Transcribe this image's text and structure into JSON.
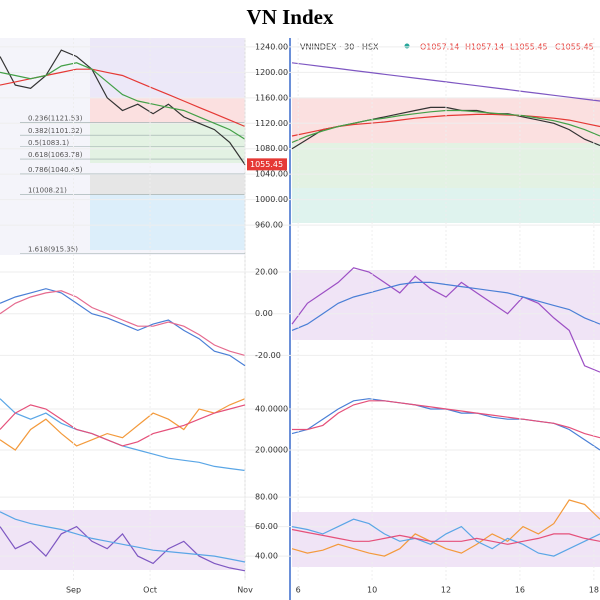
{
  "title": "VN Index",
  "right_header": {
    "symbol": "VNINDEX · 30 · HSX",
    "ohlc": [
      "O1057.14",
      "H1057.14",
      "L1055.45",
      "C1055.45"
    ]
  },
  "chart_data": [
    {
      "type": "line",
      "xlim": [
        0,
        80
      ],
      "x": [
        0,
        5,
        10,
        15,
        20,
        25,
        30,
        35,
        40,
        45,
        50,
        55,
        60,
        65,
        70,
        75,
        80
      ],
      "ylim": [
        913,
        1254
      ],
      "yticks": [
        {
          "value": 1240,
          "label": "1240.00"
        },
        {
          "value": 1200,
          "label": "1200.00"
        },
        {
          "value": 1160,
          "label": "1160.00"
        },
        {
          "value": 1120,
          "label": "1120.00"
        },
        {
          "value": 1080,
          "label": "1080.00"
        },
        {
          "value": 1040,
          "label": "1040.00"
        },
        {
          "value": 1000,
          "label": "1000.00"
        },
        {
          "value": 960,
          "label": "960.00"
        }
      ],
      "series": [
        {
          "color": "#333333",
          "values": [
            1225,
            1180,
            1175,
            1195,
            1235,
            1225,
            1205,
            1160,
            1140,
            1150,
            1135,
            1150,
            1130,
            1120,
            1110,
            1090,
            1055
          ]
        },
        {
          "color": "#e53935",
          "values": [
            1180,
            1185,
            1190,
            1195,
            1200,
            1205,
            1205,
            1200,
            1195,
            1185,
            1175,
            1165,
            1155,
            1145,
            1135,
            1125,
            1115
          ]
        },
        {
          "color": "#43a047",
          "values": [
            1200,
            1195,
            1190,
            1195,
            1210,
            1215,
            1205,
            1185,
            1165,
            1155,
            1150,
            1145,
            1140,
            1130,
            1120,
            1110,
            1095
          ]
        }
      ],
      "annotations": [
        {
          "label": "0.236(1121.53)",
          "value": 1121.53
        },
        {
          "label": "0.382(1101.32)",
          "value": 1101.32
        },
        {
          "label": "0.5(1083.1)",
          "value": 1083.1
        },
        {
          "label": "0.618(1063.78)",
          "value": 1063.78
        },
        {
          "label": "0.786(1040.45)",
          "value": 1040.45
        },
        {
          "label": "1(1008.21)",
          "value": 1008.21
        },
        {
          "label": "1.618(915.35)",
          "value": 915.35
        }
      ],
      "last_price": 1055.45
    },
    {
      "type": "line",
      "xlim": [
        0,
        80
      ],
      "x": [
        0,
        5,
        10,
        15,
        20,
        25,
        30,
        35,
        40,
        45,
        50,
        55,
        60,
        65,
        70,
        75,
        80
      ],
      "ylim": [
        -29.4,
        24.8
      ],
      "yticks": [
        {
          "value": 20,
          "label": "20.00"
        },
        {
          "value": 0,
          "label": "0.00"
        },
        {
          "value": -20,
          "label": "-20.00"
        }
      ],
      "series": [
        {
          "color": "#4a7fd6",
          "values": [
            5,
            8,
            10,
            12,
            10,
            5,
            0,
            -2,
            -5,
            -8,
            -5,
            -3,
            -8,
            -12,
            -18,
            -20,
            -25
          ]
        },
        {
          "color": "#e56b8f",
          "values": [
            0,
            5,
            8,
            10,
            11,
            8,
            3,
            0,
            -3,
            -6,
            -6,
            -4,
            -6,
            -10,
            -15,
            -18,
            -20
          ]
        }
      ]
    },
    {
      "type": "line",
      "xlim": [
        0,
        80
      ],
      "x": [
        0,
        5,
        10,
        15,
        20,
        25,
        30,
        35,
        40,
        45,
        50,
        55,
        60,
        65,
        70,
        75,
        80
      ],
      "ylim": [
        0.5,
        51.7
      ],
      "yticks": [
        {
          "value": 40,
          "label": "40.0000"
        },
        {
          "value": 20,
          "label": "20.0000"
        }
      ],
      "series": [
        {
          "color": "#5aa6e6",
          "values": [
            45,
            38,
            35,
            38,
            33,
            30,
            28,
            25,
            22,
            20,
            18,
            16,
            15,
            14,
            12,
            11,
            10
          ]
        },
        {
          "color": "#f39a3c",
          "values": [
            25,
            20,
            30,
            35,
            28,
            22,
            25,
            28,
            26,
            32,
            38,
            35,
            30,
            40,
            38,
            42,
            45
          ]
        },
        {
          "color": "#e5507a",
          "values": [
            30,
            38,
            42,
            40,
            35,
            30,
            28,
            25,
            22,
            24,
            28,
            30,
            32,
            35,
            38,
            40,
            42
          ]
        }
      ]
    },
    {
      "type": "line",
      "xlim": [
        0,
        80
      ],
      "x": [
        0,
        5,
        10,
        15,
        20,
        25,
        30,
        35,
        40,
        45,
        50,
        55,
        60,
        65,
        70,
        75,
        80
      ],
      "ylim": [
        29.2,
        81.4
      ],
      "yticks": [
        {
          "value": 80,
          "label": "80.00"
        },
        {
          "value": 60,
          "label": "60.00"
        },
        {
          "value": 40,
          "label": "40.00"
        }
      ],
      "xticks": [
        {
          "value": 24,
          "label": "Sep"
        },
        {
          "value": 49,
          "label": "Oct"
        },
        {
          "value": 80,
          "label": "Nov"
        }
      ],
      "series": [
        {
          "color": "#7e57c2",
          "values": [
            60,
            45,
            50,
            40,
            55,
            60,
            50,
            45,
            55,
            40,
            35,
            45,
            50,
            40,
            35,
            32,
            30
          ]
        },
        {
          "color": "#5aa6e6",
          "values": [
            70,
            65,
            62,
            60,
            58,
            55,
            52,
            50,
            48,
            46,
            44,
            43,
            42,
            41,
            40,
            38,
            36
          ]
        }
      ]
    },
    {
      "type": "line",
      "xlim": [
        0,
        100
      ],
      "x": [
        0,
        5,
        10,
        15,
        20,
        25,
        30,
        35,
        40,
        45,
        50,
        55,
        60,
        65,
        70,
        75,
        80,
        85,
        90,
        95,
        100
      ],
      "ylim": [
        913,
        1254
      ],
      "series": [
        {
          "color": "#333333",
          "values": [
            1080,
            1095,
            1110,
            1115,
            1120,
            1125,
            1130,
            1135,
            1140,
            1145,
            1145,
            1140,
            1140,
            1135,
            1135,
            1130,
            1125,
            1120,
            1110,
            1095,
            1085
          ]
        },
        {
          "color": "#e53935",
          "values": [
            1100,
            1105,
            1110,
            1115,
            1118,
            1120,
            1122,
            1125,
            1128,
            1130,
            1132,
            1133,
            1134,
            1134,
            1133,
            1132,
            1130,
            1128,
            1125,
            1120,
            1115
          ]
        },
        {
          "color": "#43a047",
          "values": [
            1090,
            1100,
            1108,
            1115,
            1120,
            1125,
            1128,
            1132,
            1135,
            1138,
            1140,
            1140,
            1138,
            1136,
            1134,
            1132,
            1128,
            1124,
            1118,
            1110,
            1100
          ]
        },
        {
          "color": "#7e57c2",
          "values": [
            1215,
            1212,
            1209,
            1206,
            1203,
            1200,
            1197,
            1194,
            1191,
            1188,
            1185,
            1182,
            1179,
            1176,
            1173,
            1170,
            1167,
            1164,
            1161,
            1158,
            1155
          ]
        }
      ]
    },
    {
      "type": "line",
      "xlim": [
        0,
        100
      ],
      "x": [
        0,
        5,
        10,
        15,
        20,
        25,
        30,
        35,
        40,
        45,
        50,
        55,
        60,
        65,
        70,
        75,
        80,
        85,
        90,
        95,
        100
      ],
      "ylim": [
        -29.4,
        24.8
      ],
      "series": [
        {
          "color": "#9c4fc4",
          "values": [
            -5,
            5,
            10,
            15,
            22,
            20,
            15,
            10,
            18,
            12,
            8,
            15,
            10,
            5,
            0,
            8,
            5,
            -2,
            -8,
            -25,
            -28
          ]
        },
        {
          "color": "#4a7fd6",
          "values": [
            -8,
            -5,
            0,
            5,
            8,
            10,
            12,
            14,
            15,
            15,
            14,
            13,
            12,
            11,
            10,
            8,
            6,
            4,
            2,
            -2,
            -5
          ]
        }
      ]
    },
    {
      "type": "line",
      "xlim": [
        0,
        100
      ],
      "x": [
        0,
        5,
        10,
        15,
        20,
        25,
        30,
        35,
        40,
        45,
        50,
        55,
        60,
        65,
        70,
        75,
        80,
        85,
        90,
        95,
        100
      ],
      "ylim": [
        0.5,
        51.7
      ],
      "series": [
        {
          "color": "#4a7fd6",
          "values": [
            28,
            30,
            35,
            40,
            44,
            45,
            44,
            43,
            42,
            40,
            40,
            38,
            38,
            36,
            35,
            35,
            34,
            33,
            30,
            25,
            20
          ]
        },
        {
          "color": "#e5507a",
          "values": [
            30,
            30,
            32,
            38,
            42,
            44,
            44,
            43,
            42,
            41,
            40,
            39,
            38,
            37,
            36,
            35,
            34,
            33,
            31,
            28,
            26
          ]
        }
      ]
    },
    {
      "type": "line",
      "xlim": [
        0,
        100
      ],
      "x": [
        0,
        5,
        10,
        15,
        20,
        25,
        30,
        35,
        40,
        45,
        50,
        55,
        60,
        65,
        70,
        75,
        80,
        85,
        90,
        95,
        100
      ],
      "ylim": [
        29.2,
        81.4
      ],
      "xticks": [
        {
          "value": 2,
          "label": "6"
        },
        {
          "value": 26,
          "label": "10"
        },
        {
          "value": 50,
          "label": "12"
        },
        {
          "value": 74,
          "label": "16"
        },
        {
          "value": 98,
          "label": "18"
        }
      ],
      "series": [
        {
          "color": "#f39a3c",
          "values": [
            45,
            42,
            44,
            48,
            45,
            42,
            40,
            45,
            55,
            50,
            45,
            42,
            48,
            55,
            50,
            60,
            55,
            62,
            78,
            75,
            65
          ]
        },
        {
          "color": "#5aa6e6",
          "values": [
            60,
            58,
            55,
            60,
            65,
            62,
            55,
            50,
            52,
            48,
            55,
            60,
            50,
            45,
            52,
            48,
            42,
            40,
            45,
            50,
            55
          ]
        },
        {
          "color": "#e5507a",
          "values": [
            58,
            56,
            54,
            52,
            50,
            50,
            52,
            54,
            52,
            50,
            50,
            50,
            52,
            50,
            48,
            50,
            52,
            55,
            55,
            52,
            50
          ]
        }
      ]
    }
  ]
}
